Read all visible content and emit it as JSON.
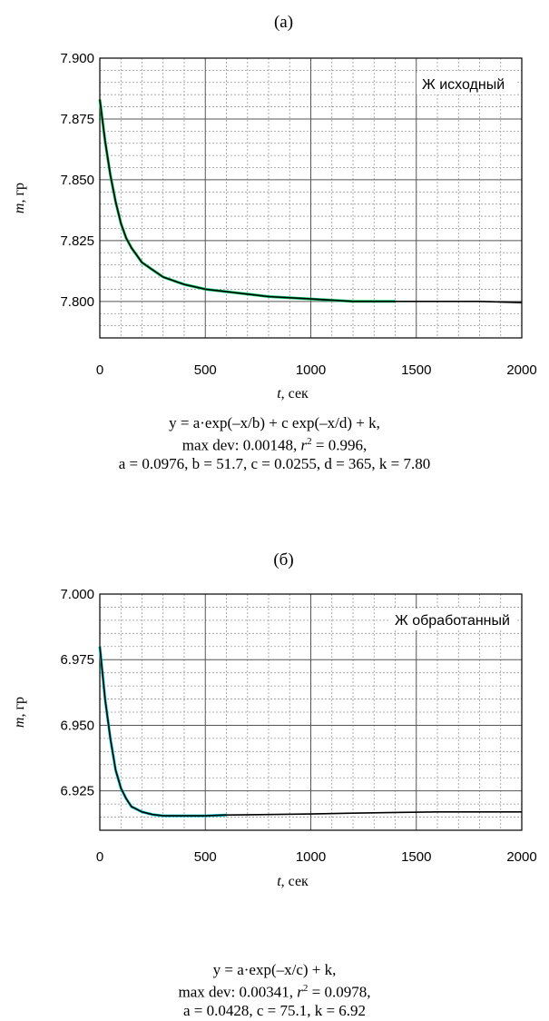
{
  "chart_data": [
    {
      "type": "line",
      "panel_label": "(а)",
      "legend_label": "Ж исходный",
      "ylabel": "m, гр",
      "xlabel": "t, сек",
      "xlim": [
        0,
        2000
      ],
      "ylim": [
        7.785,
        7.9
      ],
      "x_ticks": [
        0,
        500,
        1000,
        1500,
        2000
      ],
      "x_tick_labels": [
        "0",
        "500",
        "1000",
        "1500",
        "2000"
      ],
      "y_ticks": [
        7.8,
        7.825,
        7.85,
        7.875,
        7.9
      ],
      "y_tick_labels": [
        "7.800",
        "7.825",
        "7.850",
        "7.875",
        "7.900"
      ],
      "grid": true,
      "series": [
        {
          "color": "#000000",
          "x": [
            0,
            25,
            50,
            75,
            100,
            125,
            150,
            200,
            250,
            300,
            400,
            500,
            600,
            700,
            800,
            1000,
            1200,
            1400,
            1600,
            1800,
            2000
          ],
          "y": [
            7.883,
            7.866,
            7.852,
            7.841,
            7.832,
            7.826,
            7.822,
            7.816,
            7.813,
            7.81,
            7.807,
            7.805,
            7.804,
            7.803,
            7.802,
            7.801,
            7.8,
            7.8,
            7.8,
            7.8,
            7.7995
          ]
        },
        {
          "color": "#00cc66",
          "x": [
            0,
            25,
            50,
            75,
            100,
            125,
            150,
            200,
            250,
            300,
            400,
            500,
            600,
            700,
            800,
            1000,
            1200,
            1400
          ],
          "y": [
            7.883,
            7.866,
            7.852,
            7.841,
            7.832,
            7.826,
            7.822,
            7.816,
            7.813,
            7.81,
            7.807,
            7.805,
            7.804,
            7.803,
            7.802,
            7.801,
            7.8,
            7.8
          ]
        }
      ],
      "formula": {
        "line1": "y = a·exp(–x/b) + c exp(–x/d) + k,",
        "line2": "max dev: 0.00148, r2 = 0.996,",
        "line3": "a = 0.0976, b = 51.7, c = 0.0255, d = 365, k = 7.80"
      }
    },
    {
      "type": "line",
      "panel_label": "(б)",
      "legend_label": "Ж обработанный",
      "ylabel": "m, гр",
      "xlabel": "t, сек",
      "xlim": [
        0,
        2000
      ],
      "ylim": [
        6.91,
        7.0
      ],
      "x_ticks": [
        0,
        500,
        1000,
        1500,
        2000
      ],
      "x_tick_labels": [
        "0",
        "500",
        "1000",
        "1500",
        "2000"
      ],
      "y_ticks": [
        6.925,
        6.95,
        6.975,
        7.0
      ],
      "y_tick_labels": [
        "6.925",
        "6.950",
        "6.975",
        "7.000"
      ],
      "grid": true,
      "series": [
        {
          "color": "#000000",
          "x": [
            0,
            25,
            50,
            75,
            100,
            125,
            150,
            200,
            250,
            300,
            400,
            500,
            600,
            800,
            1000,
            1200,
            1400,
            1600,
            1800,
            2000
          ],
          "y": [
            6.98,
            6.96,
            6.945,
            6.933,
            6.926,
            6.922,
            6.919,
            6.917,
            6.916,
            6.9155,
            6.9155,
            6.9155,
            6.9158,
            6.916,
            6.9162,
            6.9165,
            6.9168,
            6.917,
            6.917,
            6.917
          ]
        },
        {
          "color": "#00cccc",
          "x": [
            0,
            25,
            50,
            75,
            100,
            125,
            150,
            200,
            250,
            300,
            400,
            500,
            600
          ],
          "y": [
            6.98,
            6.96,
            6.945,
            6.933,
            6.926,
            6.922,
            6.919,
            6.917,
            6.916,
            6.9155,
            6.9155,
            6.9155,
            6.9158
          ]
        }
      ],
      "formula": {
        "line1": "y = a·exp(–x/c) + k,",
        "line2": "max dev: 0.00341, r2 = 0.0978,",
        "line3": "a = 0.0428, c = 75.1, k = 6.92"
      }
    }
  ]
}
